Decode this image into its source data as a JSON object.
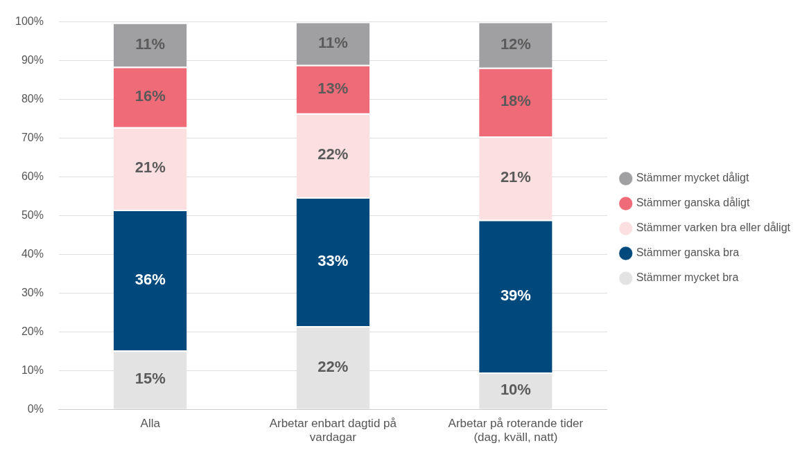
{
  "chart_data": {
    "type": "bar",
    "stacked": true,
    "categories": [
      "Alla",
      "Arbetar enbart dagtid på vardagar",
      "Arbetar på roterande tider (dag, kväll, natt)"
    ],
    "series": [
      {
        "name": "Stämmer mycket bra",
        "color": "#e3e3e3",
        "values": [
          15.2,
          21.5,
          9.5
        ],
        "value_labels": [
          "15%",
          "22%",
          "10%"
        ]
      },
      {
        "name": "Stämmer ganska bra",
        "color": "#00497d",
        "values": [
          36.3,
          33.2,
          39.4
        ],
        "value_labels": [
          "36%",
          "33%",
          "39%"
        ]
      },
      {
        "name": "Stämmer varken bra eller dåligt",
        "color": "#fcdfe0",
        "values": [
          21.3,
          21.7,
          21.5
        ],
        "value_labels": [
          "21%",
          "22%",
          "21%"
        ]
      },
      {
        "name": "Stämmer ganska dåligt",
        "color": "#ee6b77",
        "values": [
          15.6,
          12.5,
          17.8
        ],
        "value_labels": [
          "16%",
          "13%",
          "18%"
        ]
      },
      {
        "name": "Stämmer mycket dåligt",
        "color": "#a0a0a2",
        "values": [
          11.4,
          11.1,
          11.8
        ],
        "value_labels": [
          "11%",
          "11%",
          "12%"
        ]
      }
    ],
    "ylim": [
      0,
      100
    ],
    "yticks": [
      {
        "value": 0,
        "label": "0%"
      },
      {
        "value": 10,
        "label": "10%"
      },
      {
        "value": 20,
        "label": "20%"
      },
      {
        "value": 30,
        "label": "30%"
      },
      {
        "value": 40,
        "label": "40%"
      },
      {
        "value": 50,
        "label": "50%"
      },
      {
        "value": 60,
        "label": "60%"
      },
      {
        "value": 70,
        "label": "70%"
      },
      {
        "value": 80,
        "label": "80%"
      },
      {
        "value": 90,
        "label": "90%"
      },
      {
        "value": 100,
        "label": "100%"
      }
    ],
    "grid": "y",
    "legend": "right"
  }
}
